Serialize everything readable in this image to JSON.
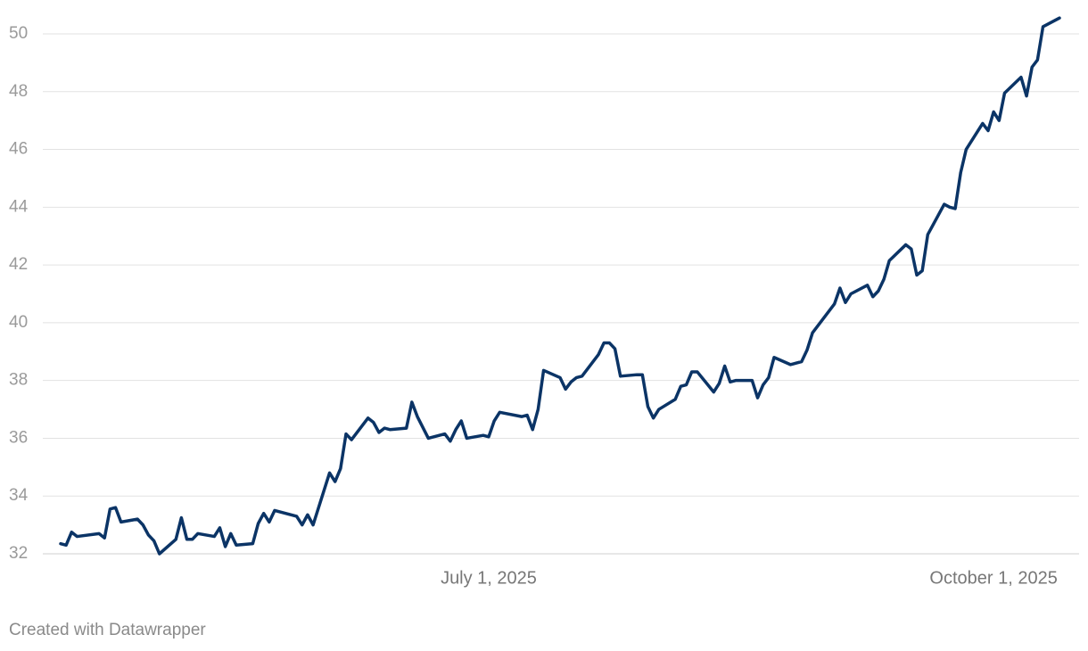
{
  "chart_data": {
    "type": "line",
    "x": [
      "2025-04-14",
      "2025-04-15",
      "2025-04-16",
      "2025-04-17",
      "2025-04-21",
      "2025-04-22",
      "2025-04-23",
      "2025-04-24",
      "2025-04-25",
      "2025-04-28",
      "2025-04-29",
      "2025-04-30",
      "2025-05-01",
      "2025-05-02",
      "2025-05-05",
      "2025-05-06",
      "2025-05-07",
      "2025-05-08",
      "2025-05-09",
      "2025-05-12",
      "2025-05-13",
      "2025-05-14",
      "2025-05-15",
      "2025-05-16",
      "2025-05-19",
      "2025-05-20",
      "2025-05-21",
      "2025-05-22",
      "2025-05-23",
      "2025-05-27",
      "2025-05-28",
      "2025-05-29",
      "2025-05-30",
      "2025-06-02",
      "2025-06-03",
      "2025-06-04",
      "2025-06-05",
      "2025-06-06",
      "2025-06-09",
      "2025-06-10",
      "2025-06-11",
      "2025-06-12",
      "2025-06-13",
      "2025-06-16",
      "2025-06-17",
      "2025-06-18",
      "2025-06-20",
      "2025-06-23",
      "2025-06-24",
      "2025-06-25",
      "2025-06-26",
      "2025-06-27",
      "2025-06-30",
      "2025-07-01",
      "2025-07-02",
      "2025-07-03",
      "2025-07-07",
      "2025-07-08",
      "2025-07-09",
      "2025-07-10",
      "2025-07-11",
      "2025-07-14",
      "2025-07-15",
      "2025-07-16",
      "2025-07-17",
      "2025-07-18",
      "2025-07-21",
      "2025-07-22",
      "2025-07-23",
      "2025-07-24",
      "2025-07-25",
      "2025-07-28",
      "2025-07-29",
      "2025-07-30",
      "2025-07-31",
      "2025-08-01",
      "2025-08-04",
      "2025-08-05",
      "2025-08-06",
      "2025-08-07",
      "2025-08-08",
      "2025-08-11",
      "2025-08-12",
      "2025-08-13",
      "2025-08-14",
      "2025-08-15",
      "2025-08-18",
      "2025-08-19",
      "2025-08-20",
      "2025-08-21",
      "2025-08-22",
      "2025-08-25",
      "2025-08-26",
      "2025-08-27",
      "2025-08-28",
      "2025-08-29",
      "2025-09-02",
      "2025-09-03",
      "2025-09-04",
      "2025-09-05",
      "2025-09-08",
      "2025-09-09",
      "2025-09-10",
      "2025-09-11",
      "2025-09-12",
      "2025-09-15",
      "2025-09-16",
      "2025-09-17",
      "2025-09-18",
      "2025-09-19",
      "2025-09-22",
      "2025-09-23",
      "2025-09-24",
      "2025-09-25",
      "2025-09-26",
      "2025-09-29",
      "2025-09-30",
      "2025-10-01",
      "2025-10-02",
      "2025-10-03",
      "2025-10-06",
      "2025-10-07",
      "2025-10-08",
      "2025-10-09",
      "2025-10-10",
      "2025-10-13"
    ],
    "series": [
      {
        "color": "#0b3466",
        "values": [
          32.35,
          32.3,
          32.75,
          32.6,
          32.7,
          32.55,
          33.55,
          33.6,
          33.1,
          33.2,
          33.0,
          32.65,
          32.45,
          32.0,
          32.5,
          33.25,
          32.5,
          32.5,
          32.7,
          32.6,
          32.9,
          32.25,
          32.7,
          32.3,
          32.35,
          33.05,
          33.4,
          33.1,
          33.5,
          33.3,
          33.0,
          33.35,
          33.0,
          34.8,
          34.5,
          34.95,
          36.15,
          35.95,
          36.7,
          36.55,
          36.2,
          36.35,
          36.3,
          36.35,
          37.25,
          36.75,
          36.0,
          36.15,
          35.9,
          36.3,
          36.6,
          36.0,
          36.1,
          36.05,
          36.6,
          36.9,
          36.75,
          36.8,
          36.3,
          37.0,
          38.35,
          38.1,
          37.7,
          37.95,
          38.1,
          38.15,
          38.9,
          39.3,
          39.3,
          39.1,
          38.15,
          38.2,
          38.2,
          37.1,
          36.7,
          37.0,
          37.35,
          37.8,
          37.85,
          38.3,
          38.3,
          37.6,
          37.9,
          38.5,
          37.95,
          38.0,
          38.0,
          37.4,
          37.85,
          38.1,
          38.8,
          38.55,
          38.6,
          38.65,
          39.05,
          39.65,
          40.65,
          41.2,
          40.7,
          41.0,
          41.3,
          40.9,
          41.1,
          41.5,
          42.15,
          42.7,
          42.55,
          41.65,
          41.8,
          43.05,
          44.1,
          44.0,
          43.95,
          45.2,
          46.0,
          46.9,
          46.65,
          47.3,
          47.0,
          47.95,
          48.5,
          47.85,
          48.85,
          49.1,
          50.25,
          50.55
        ]
      }
    ],
    "xlim": [
      "2025-04-14",
      "2025-10-13"
    ],
    "xticks": [
      {
        "value": "2025-07-01",
        "label": "July 1, 2025"
      },
      {
        "value": "2025-10-01",
        "label": "October 1, 2025"
      }
    ],
    "ylim": [
      32,
      50
    ],
    "yticks": [
      32,
      34,
      36,
      38,
      40,
      42,
      44,
      46,
      48,
      50
    ],
    "grid": true,
    "footer": "Created with Datawrapper"
  }
}
